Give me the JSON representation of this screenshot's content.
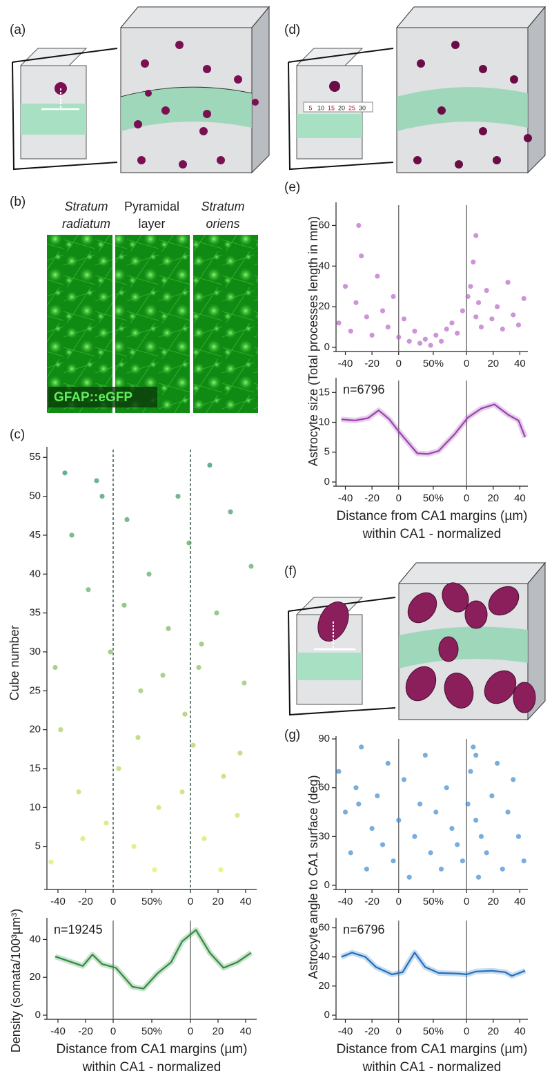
{
  "panel_labels": {
    "a": "(a)",
    "b": "(b)",
    "c": "(c)",
    "d": "(d)",
    "e": "(e)",
    "f": "(f)",
    "g": "(g)"
  },
  "illustrations": {
    "b_columns": [
      "Stratum",
      "radiatum",
      "Pyramidal",
      "layer",
      "Stratum",
      "oriens"
    ],
    "b_marker": "GFAP::eGFP",
    "d_ruler": [
      5,
      10,
      15,
      20,
      25,
      30
    ]
  },
  "chart_data": [
    {
      "type": "scatter",
      "ylabel": "Cube number",
      "x": [
        -45,
        -38,
        -30,
        -25,
        -18,
        -12,
        -5,
        -2,
        4,
        10,
        15,
        20,
        26,
        33,
        40,
        47,
        52,
        55,
        58,
        62,
        66,
        70,
        75,
        80,
        85,
        90,
        95,
        100,
        -35,
        30,
        -42,
        -22,
        -8,
        8,
        18,
        36,
        50,
        64,
        78,
        92
      ],
      "values": [
        3,
        20,
        45,
        12,
        38,
        52,
        8,
        30,
        15,
        47,
        5,
        25,
        40,
        10,
        33,
        50,
        22,
        44,
        18,
        28,
        6,
        54,
        35,
        14,
        48,
        9,
        26,
        41,
        53,
        2,
        28,
        6,
        50,
        36,
        19,
        27,
        12,
        31,
        2,
        17
      ],
      "color": [
        "#eaf25a",
        "#1f8a5e"
      ],
      "xlim": [
        -48,
        104
      ],
      "ylim": [
        0,
        56
      ],
      "xticks": [
        -40,
        -20,
        0,
        {
          "value": 28,
          "label": "50%"
        },
        {
          "value": 56,
          "label": "0"
        },
        {
          "value": 76,
          "label": "20"
        },
        {
          "value": 96,
          "label": "40"
        }
      ],
      "yticks": [
        5,
        10,
        15,
        20,
        25,
        30,
        35,
        40,
        45,
        50,
        55
      ]
    },
    {
      "type": "line",
      "annotation": "n=19245",
      "ylabel": "Density (somata/100³µm³)",
      "xlabel": [
        "Distance from CA1 margins (µm)",
        "within CA1 - normalized"
      ],
      "x": [
        -42,
        -30,
        -22,
        -15,
        -8,
        2,
        14,
        22,
        32,
        42,
        50,
        60,
        70,
        80,
        90,
        100
      ],
      "values": [
        31,
        28,
        26,
        32,
        27,
        25,
        15,
        14,
        22,
        28,
        39,
        45,
        33,
        25,
        28,
        33
      ],
      "color": "#2e8b3e",
      "xlim": [
        -48,
        104
      ],
      "ylim": [
        0,
        50
      ],
      "xticks": [
        -40,
        -20,
        0,
        {
          "value": 28,
          "label": "50%"
        },
        {
          "value": 56,
          "label": "0"
        },
        {
          "value": 76,
          "label": "20"
        },
        {
          "value": 96,
          "label": "40"
        }
      ],
      "yticks": [
        0,
        20,
        40
      ]
    },
    {
      "type": "scatter",
      "ylabel": "Astrocyte size (Total processes length in mm)",
      "x": [
        -45,
        -40,
        -36,
        -32,
        -28,
        -24,
        -20,
        -16,
        -12,
        -8,
        -4,
        0,
        4,
        8,
        12,
        16,
        20,
        24,
        28,
        32,
        36,
        40,
        44,
        48,
        52,
        54,
        56,
        58,
        60,
        62,
        66,
        70,
        74,
        78,
        82,
        86,
        90,
        94,
        -30,
        58
      ],
      "values": [
        12,
        30,
        8,
        22,
        45,
        15,
        6,
        35,
        18,
        10,
        25,
        5,
        14,
        3,
        8,
        2,
        4,
        1,
        6,
        3,
        9,
        12,
        7,
        18,
        25,
        30,
        42,
        15,
        22,
        10,
        28,
        14,
        20,
        9,
        32,
        16,
        11,
        24,
        60,
        55
      ],
      "color": "#b867c6",
      "xlim": [
        -47,
        97
      ],
      "ylim": [
        0,
        70
      ],
      "xticks": [
        -40,
        -20,
        0,
        {
          "value": 26,
          "label": "50%"
        },
        {
          "value": 51,
          "label": "0"
        },
        {
          "value": 71,
          "label": "20"
        },
        {
          "value": 91,
          "label": "40"
        }
      ],
      "yticks": [
        0,
        20,
        40,
        60
      ]
    },
    {
      "type": "line",
      "annotation": "n=6796",
      "xlabel": [
        "Distance from CA1 margins (µm)",
        "within CA1 - normalized"
      ],
      "x": [
        -43,
        -33,
        -23,
        -15,
        -7,
        0,
        14,
        22,
        30,
        42,
        52,
        62,
        72,
        82,
        90,
        95
      ],
      "values": [
        10.5,
        10.3,
        10.7,
        12,
        10.5,
        8.5,
        4.8,
        4.7,
        5.2,
        8,
        10.8,
        12.3,
        13,
        11.3,
        10.3,
        7.5
      ],
      "color": "#9c3fb0",
      "xlim": [
        -47,
        97
      ],
      "ylim": [
        0,
        17
      ],
      "xticks": [
        -40,
        -20,
        0,
        {
          "value": 26,
          "label": "50%"
        },
        {
          "value": 51,
          "label": "0"
        },
        {
          "value": 71,
          "label": "20"
        },
        {
          "value": 91,
          "label": "40"
        }
      ],
      "yticks": [
        0,
        5,
        10,
        15
      ]
    },
    {
      "type": "scatter",
      "ylabel": "Astrocyte angle to CA1 surface (deg)",
      "x": [
        -45,
        -40,
        -36,
        -32,
        -28,
        -24,
        -20,
        -16,
        -12,
        -8,
        -4,
        0,
        4,
        8,
        12,
        16,
        20,
        24,
        28,
        32,
        36,
        40,
        44,
        48,
        52,
        54,
        56,
        58,
        60,
        62,
        66,
        70,
        74,
        78,
        82,
        86,
        90,
        94,
        -30,
        58
      ],
      "values": [
        70,
        45,
        20,
        60,
        85,
        10,
        35,
        55,
        25,
        75,
        15,
        40,
        65,
        5,
        30,
        50,
        80,
        20,
        45,
        10,
        60,
        35,
        25,
        15,
        50,
        70,
        85,
        40,
        5,
        30,
        20,
        55,
        75,
        10,
        45,
        65,
        30,
        15,
        50,
        80
      ],
      "color": "#3d8bd0",
      "xlim": [
        -47,
        97
      ],
      "ylim": [
        0,
        90
      ],
      "xticks": [
        -40,
        -20,
        0,
        {
          "value": 26,
          "label": "50%"
        },
        {
          "value": 51,
          "label": "0"
        },
        {
          "value": 71,
          "label": "20"
        },
        {
          "value": 91,
          "label": "40"
        }
      ],
      "yticks": [
        0,
        30,
        60,
        90
      ]
    },
    {
      "type": "line",
      "annotation": "n=6796",
      "xlabel": [
        "Distance from CA1 margins (µm)",
        "within CA1 - normalized"
      ],
      "x": [
        -43,
        -35,
        -25,
        -17,
        -5,
        3,
        12,
        20,
        30,
        45,
        51,
        58,
        70,
        80,
        85,
        95
      ],
      "values": [
        40,
        43,
        40,
        33,
        28,
        29.5,
        43,
        33,
        29,
        28.5,
        28,
        30,
        30.5,
        29.5,
        27,
        30.5
      ],
      "color": "#1f6fc0",
      "xlim": [
        -47,
        97
      ],
      "ylim": [
        0,
        65
      ],
      "xticks": [
        -40,
        -20,
        0,
        {
          "value": 26,
          "label": "50%"
        },
        {
          "value": 51,
          "label": "0"
        },
        {
          "value": 71,
          "label": "20"
        },
        {
          "value": 91,
          "label": "40"
        }
      ],
      "yticks": [
        0,
        20,
        40,
        60
      ]
    }
  ]
}
